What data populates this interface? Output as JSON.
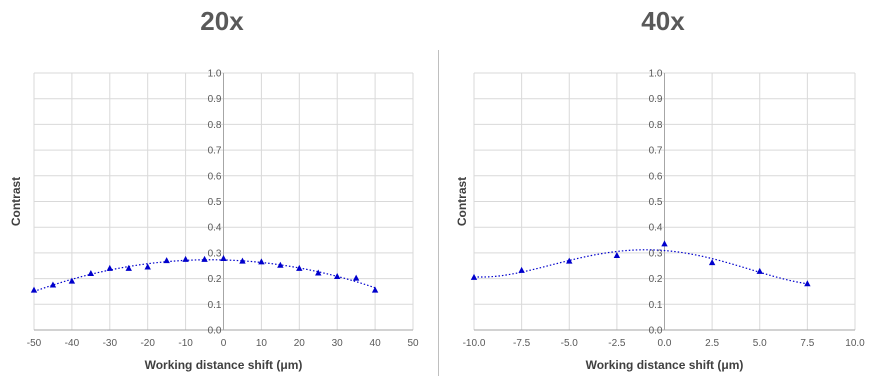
{
  "titles": {
    "left": "20x",
    "right": "40x"
  },
  "chart_data": [
    {
      "type": "scatter",
      "title": "20x",
      "xlabel": "Working distance shift (μm)",
      "ylabel": "Contrast",
      "xlim": [
        -50,
        50
      ],
      "ylim": [
        0,
        1.0
      ],
      "xticks": [
        -50,
        -40,
        -30,
        -20,
        -10,
        0,
        10,
        20,
        30,
        40,
        50
      ],
      "xtick_labels": [
        "-50",
        "-40",
        "-30",
        "-20",
        "-10",
        "0",
        "10",
        "20",
        "30",
        "40",
        "50"
      ],
      "yticks": [
        0,
        0.1,
        0.2,
        0.3,
        0.4,
        0.5,
        0.6,
        0.7,
        0.8,
        0.9,
        1.0
      ],
      "ytick_labels": [
        "0.0",
        "0.1",
        "0.2",
        "0.3",
        "0.4",
        "0.5",
        "0.6",
        "0.7",
        "0.8",
        "0.9",
        "1.0"
      ],
      "grid": true,
      "marker": "triangle",
      "color": "#0000cc",
      "trendline": "dotted",
      "x": [
        -50,
        -45,
        -40,
        -35,
        -30,
        -25,
        -20,
        -15,
        -10,
        -5,
        0,
        5,
        10,
        15,
        20,
        25,
        30,
        35,
        40
      ],
      "y": [
        0.155,
        0.175,
        0.19,
        0.22,
        0.24,
        0.24,
        0.245,
        0.27,
        0.275,
        0.275,
        0.278,
        0.268,
        0.265,
        0.252,
        0.24,
        0.222,
        0.208,
        0.202,
        0.155
      ]
    },
    {
      "type": "scatter",
      "title": "40x",
      "xlabel": "Working distance shift (μm)",
      "ylabel": "Contrast",
      "xlim": [
        -10,
        10
      ],
      "ylim": [
        0,
        1.0
      ],
      "xticks": [
        -10,
        -7.5,
        -5,
        -2.5,
        0,
        2.5,
        5,
        7.5,
        10
      ],
      "xtick_labels": [
        "-10.0",
        "-7.5",
        "-5.0",
        "-2.5",
        "0.0",
        "2.5",
        "5.0",
        "7.5",
        "10.0"
      ],
      "yticks": [
        0,
        0.1,
        0.2,
        0.3,
        0.4,
        0.5,
        0.6,
        0.7,
        0.8,
        0.9,
        1.0
      ],
      "ytick_labels": [
        "0.0",
        "0.1",
        "0.2",
        "0.3",
        "0.4",
        "0.5",
        "0.6",
        "0.7",
        "0.8",
        "0.9",
        "1.0"
      ],
      "grid": true,
      "marker": "triangle",
      "color": "#0000cc",
      "trendline": "dotted",
      "x": [
        -10,
        -7.5,
        -5,
        -2.5,
        0,
        2.5,
        5,
        7.5
      ],
      "y": [
        0.205,
        0.232,
        0.268,
        0.29,
        0.335,
        0.262,
        0.228,
        0.18
      ]
    }
  ]
}
